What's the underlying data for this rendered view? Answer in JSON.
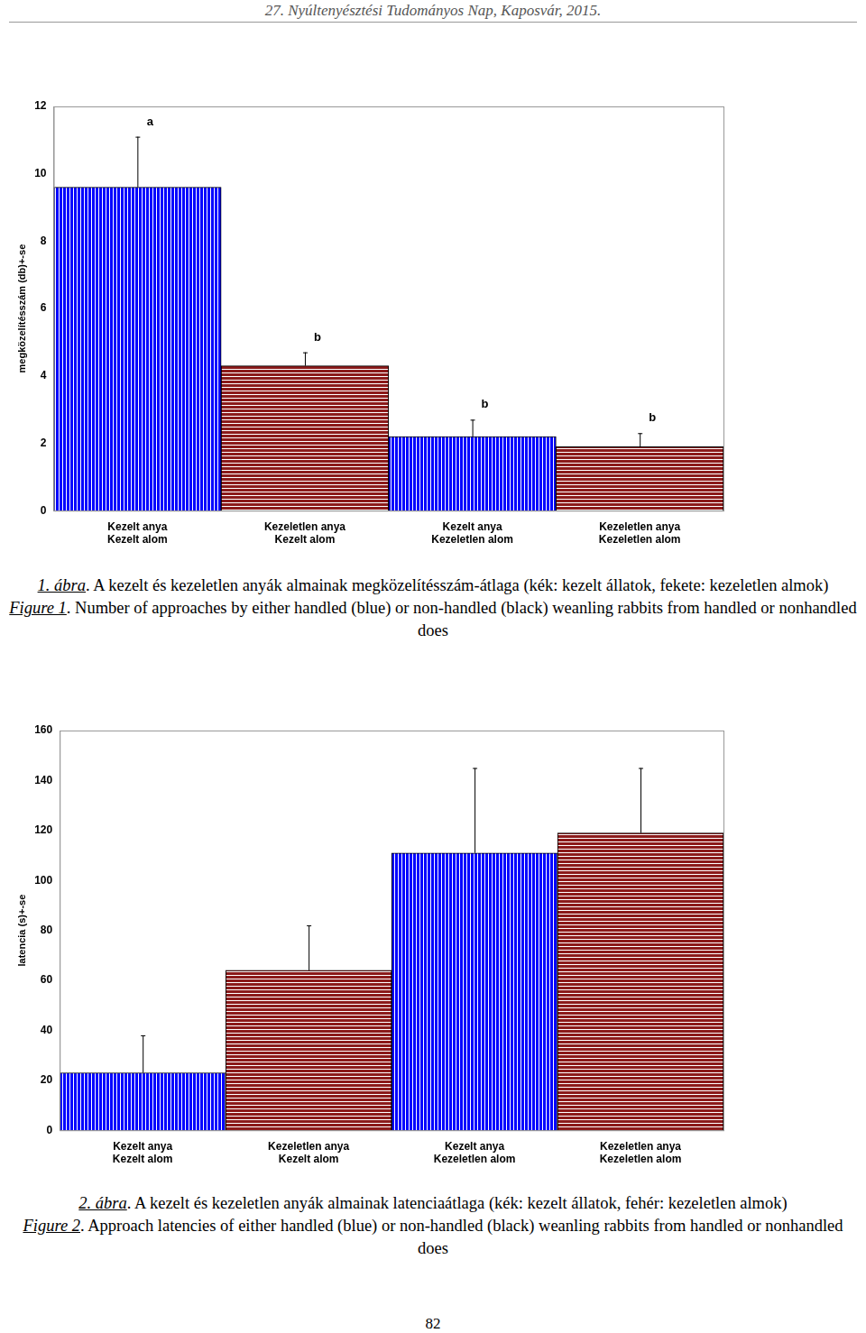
{
  "header": "27. Nyúltenyésztési Tudományos Nap, Kaposvár, 2015.",
  "chart_data": [
    {
      "type": "bar",
      "y_label": "megközelítésszám (db)+-se",
      "categories": [
        [
          "Kezelt anya",
          "Kezelt alom"
        ],
        [
          "Kezeletlen anya",
          "Kezelt alom"
        ],
        [
          "Kezelt anya",
          "Kezeletlen alom"
        ],
        [
          "Kezeletlen anya",
          "Kezeletlen alom"
        ]
      ],
      "values": [
        9.6,
        4.3,
        2.2,
        1.9
      ],
      "errors": [
        1.5,
        0.4,
        0.5,
        0.4
      ],
      "significance_labels": [
        "a",
        "b",
        "b",
        "b"
      ],
      "colors": [
        "#0000ff",
        "#8b1a1a",
        "#0000ff",
        "#8b1a1a"
      ],
      "ylim": [
        0,
        12
      ],
      "yticks": [
        0,
        2,
        4,
        6,
        8,
        10,
        12
      ],
      "grid": false,
      "caption_hu": {
        "label": "1. ábra",
        "text": ". A kezelt és kezeletlen anyák almainak megközelítésszám-átlaga (kék: kezelt állatok, fekete: kezeletlen almok)"
      },
      "caption_en": {
        "label": "Figure 1",
        "text": ". Number of approaches by either handled (blue) or non-handled (black) weanling rabbits from handled or nonhandled does"
      }
    },
    {
      "type": "bar",
      "y_label": "latencia (s)+-se",
      "categories": [
        [
          "Kezelt anya",
          "Kezelt alom"
        ],
        [
          "Kezeletlen anya",
          "Kezelt alom"
        ],
        [
          "Kezelt anya",
          "Kezeletlen alom"
        ],
        [
          "Kezeletlen anya",
          "Kezeletlen alom"
        ]
      ],
      "values": [
        23,
        64,
        111,
        119
      ],
      "errors": [
        15,
        18,
        34,
        26
      ],
      "colors": [
        "#0000ff",
        "#8b1a1a",
        "#0000ff",
        "#8b1a1a"
      ],
      "ylim": [
        0,
        160
      ],
      "yticks": [
        0,
        20,
        40,
        60,
        80,
        100,
        120,
        140,
        160
      ],
      "grid": false,
      "caption_hu": {
        "label": "2. ábra",
        "text": ". A kezelt és kezeletlen anyák almainak latenciaátlaga (kék: kezelt állatok, fehér: kezeletlen almok)"
      },
      "caption_en": {
        "label": "Figure 2",
        "text": ". Approach latencies of either handled (blue) or non-handled (black) weanling rabbits from handled or nonhandled does"
      }
    }
  ],
  "page_number": "82"
}
